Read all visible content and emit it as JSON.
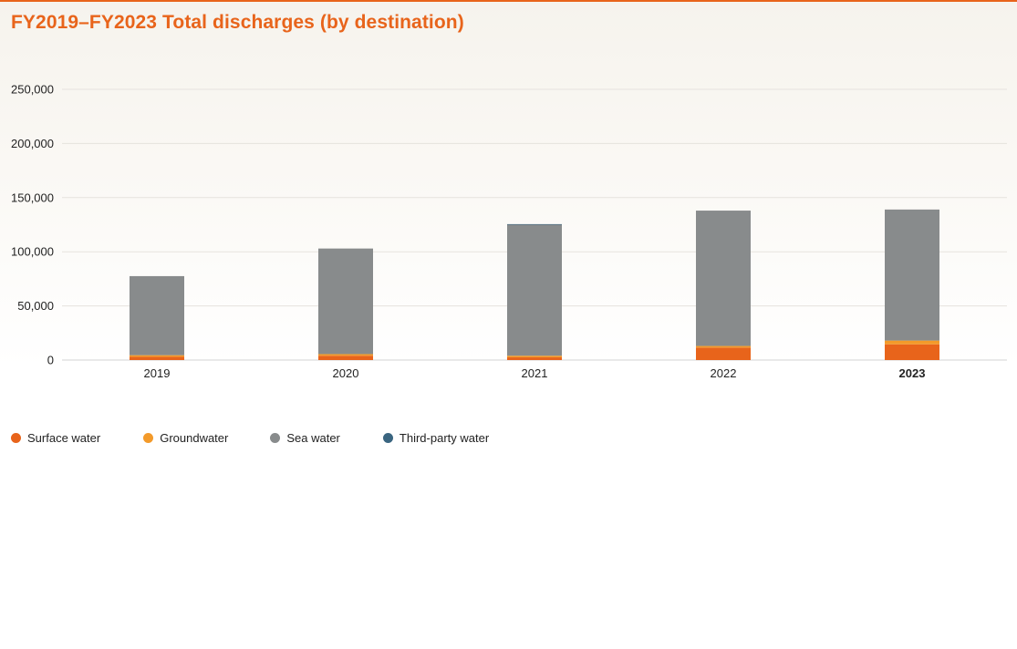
{
  "title": "FY2019–FY2023 Total discharges (by destination)",
  "chart_data": {
    "type": "bar",
    "stacked": true,
    "title": "FY2019–FY2023 Total discharges (by destination)",
    "xlabel": "",
    "ylabel": "",
    "ylim": [
      0,
      250000
    ],
    "yticks": [
      0,
      50000,
      100000,
      150000,
      200000,
      250000
    ],
    "ytick_labels": [
      "0",
      "50,000",
      "100,000",
      "150,000",
      "200,000",
      "250,000"
    ],
    "categories": [
      "2019",
      "2020",
      "2021",
      "2022",
      "2023"
    ],
    "highlight_category": "2023",
    "grid": true,
    "legend_position": "bottom-left",
    "series": [
      {
        "name": "Surface water",
        "color": "#e8641b",
        "values": [
          3000,
          4000,
          2500,
          11500,
          14500
        ]
      },
      {
        "name": "Groundwater",
        "color": "#f39a2a",
        "values": [
          1500,
          1500,
          1500,
          1500,
          3500
        ]
      },
      {
        "name": "Sea water",
        "color": "#888b8c",
        "values": [
          73000,
          97500,
          121000,
          125000,
          121000
        ]
      },
      {
        "name": "Third-party water",
        "color": "#3a6580",
        "values": [
          0,
          0,
          500,
          0,
          0
        ]
      }
    ]
  }
}
